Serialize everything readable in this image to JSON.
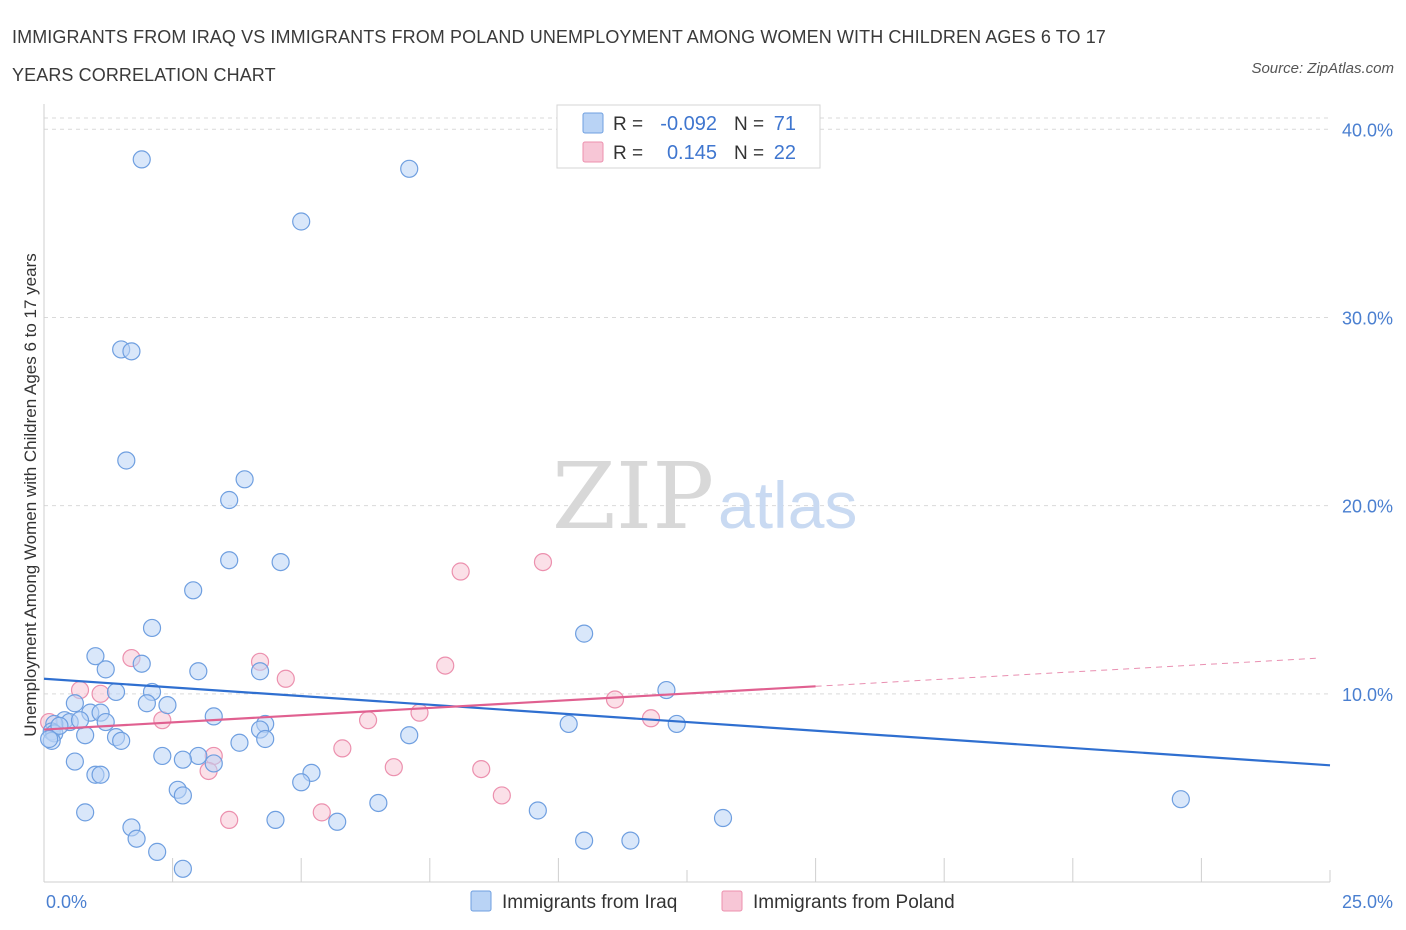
{
  "title": "IMMIGRANTS FROM IRAQ VS IMMIGRANTS FROM POLAND UNEMPLOYMENT AMONG WOMEN WITH CHILDREN AGES 6 TO 17 YEARS CORRELATION CHART",
  "source": "Source: ZipAtlas.com",
  "watermark": {
    "zip": "ZIP",
    "atlas": "atlas"
  },
  "colors": {
    "iraq_fill": "#b9d3f5",
    "iraq_stroke": "#6f9fe0",
    "iraq_line": "#2f6fd0",
    "poland_fill": "#f7c6d6",
    "poland_stroke": "#ec90ae",
    "poland_line": "#e06090",
    "tick_text": "#4a7fd0",
    "grid": "#d9d9d9"
  },
  "stats_legend": {
    "r_label": "R =",
    "n_label": "N =",
    "iraq": {
      "r": "-0.092",
      "n": "71"
    },
    "poland": {
      "r": "0.145",
      "n": "22"
    }
  },
  "chart_data": {
    "type": "scatter",
    "ylabel": "Unemployment Among Women with Children Ages 6 to 17 years",
    "x_tick_labels": [
      "0.0%",
      "25.0%"
    ],
    "y_tick_labels": [
      "10.0%",
      "20.0%",
      "30.0%",
      "40.0%"
    ],
    "x_ticks": [
      0,
      25
    ],
    "y_ticks": [
      10,
      20,
      30,
      40
    ],
    "xlim": [
      0,
      25
    ],
    "ylim": [
      0,
      40.6
    ],
    "grid": "horizontal dashed",
    "legend_position": "bottom-center",
    "series": [
      {
        "name": "Immigrants from Iraq",
        "points": [
          [
            1.9,
            38.4
          ],
          [
            7.1,
            37.9
          ],
          [
            5.0,
            35.1
          ],
          [
            1.5,
            28.3
          ],
          [
            1.7,
            28.2
          ],
          [
            1.6,
            22.4
          ],
          [
            3.9,
            21.4
          ],
          [
            3.6,
            20.3
          ],
          [
            3.6,
            17.1
          ],
          [
            4.6,
            17.0
          ],
          [
            2.9,
            15.5
          ],
          [
            2.1,
            13.5
          ],
          [
            10.5,
            13.2
          ],
          [
            1.0,
            12.0
          ],
          [
            1.2,
            11.3
          ],
          [
            1.9,
            11.6
          ],
          [
            3.0,
            11.2
          ],
          [
            4.2,
            11.2
          ],
          [
            12.1,
            10.2
          ],
          [
            2.1,
            10.1
          ],
          [
            1.4,
            10.1
          ],
          [
            0.6,
            9.5
          ],
          [
            2.0,
            9.5
          ],
          [
            2.4,
            9.4
          ],
          [
            0.9,
            9.0
          ],
          [
            1.1,
            9.0
          ],
          [
            3.3,
            8.8
          ],
          [
            0.4,
            8.6
          ],
          [
            0.5,
            8.5
          ],
          [
            0.2,
            8.4
          ],
          [
            1.2,
            8.5
          ],
          [
            10.2,
            8.4
          ],
          [
            12.3,
            8.4
          ],
          [
            4.3,
            8.4
          ],
          [
            4.2,
            8.1
          ],
          [
            0.15,
            8.0
          ],
          [
            0.8,
            7.8
          ],
          [
            0.2,
            7.9
          ],
          [
            1.4,
            7.7
          ],
          [
            7.1,
            7.8
          ],
          [
            4.3,
            7.6
          ],
          [
            1.5,
            7.5
          ],
          [
            3.8,
            7.4
          ],
          [
            0.15,
            7.5
          ],
          [
            3.0,
            6.7
          ],
          [
            2.3,
            6.7
          ],
          [
            2.7,
            6.5
          ],
          [
            3.3,
            6.3
          ],
          [
            0.6,
            6.4
          ],
          [
            1.0,
            5.7
          ],
          [
            1.1,
            5.7
          ],
          [
            5.2,
            5.8
          ],
          [
            5.0,
            5.3
          ],
          [
            2.6,
            4.9
          ],
          [
            2.7,
            4.6
          ],
          [
            6.5,
            4.2
          ],
          [
            22.1,
            4.4
          ],
          [
            0.8,
            3.7
          ],
          [
            9.6,
            3.8
          ],
          [
            13.2,
            3.4
          ],
          [
            4.5,
            3.3
          ],
          [
            5.7,
            3.2
          ],
          [
            1.7,
            2.9
          ],
          [
            1.8,
            2.3
          ],
          [
            10.5,
            2.2
          ],
          [
            11.4,
            2.2
          ],
          [
            2.2,
            1.6
          ],
          [
            2.7,
            0.7
          ],
          [
            0.3,
            8.3
          ],
          [
            0.7,
            8.6
          ],
          [
            0.1,
            7.6
          ]
        ],
        "trend": {
          "x": [
            0,
            25
          ],
          "y": [
            10.8,
            6.2
          ]
        }
      },
      {
        "name": "Immigrants from Poland",
        "points": [
          [
            9.7,
            17.0
          ],
          [
            8.1,
            16.5
          ],
          [
            1.7,
            11.9
          ],
          [
            4.2,
            11.7
          ],
          [
            7.8,
            11.5
          ],
          [
            4.7,
            10.8
          ],
          [
            0.7,
            10.2
          ],
          [
            1.1,
            10.0
          ],
          [
            11.1,
            9.7
          ],
          [
            7.3,
            9.0
          ],
          [
            11.8,
            8.7
          ],
          [
            6.3,
            8.6
          ],
          [
            2.3,
            8.6
          ],
          [
            0.1,
            8.5
          ],
          [
            5.8,
            7.1
          ],
          [
            3.3,
            6.7
          ],
          [
            6.8,
            6.1
          ],
          [
            8.5,
            6.0
          ],
          [
            3.2,
            5.9
          ],
          [
            8.9,
            4.6
          ],
          [
            5.4,
            3.7
          ],
          [
            3.6,
            3.3
          ]
        ],
        "trend": {
          "x": [
            0,
            15
          ],
          "y": [
            8.1,
            10.4
          ],
          "dashed_extension": {
            "x": [
              15,
              24.8
            ],
            "y": [
              10.4,
              11.9
            ]
          }
        }
      }
    ]
  }
}
